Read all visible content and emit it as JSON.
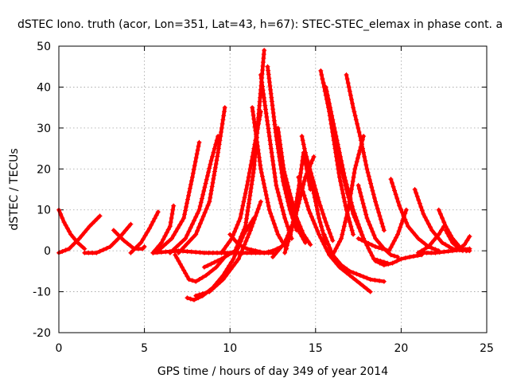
{
  "chart_data": {
    "type": "scatter",
    "title": "dSTEC Iono. truth (acor, Lon=351, Lat=43, h=67): STEC-STEC_elemax in phase cont. a",
    "xlabel": "GPS time / hours of day 349 of year 2014",
    "ylabel": "dSTEC  / TECUs",
    "xlim": [
      0,
      25
    ],
    "ylim": [
      -20,
      50
    ],
    "x_ticks": [
      0,
      5,
      10,
      15,
      20,
      25
    ],
    "y_ticks": [
      -20,
      -10,
      0,
      10,
      20,
      30,
      40,
      50
    ],
    "grid": true,
    "marker": "+",
    "color": "#ff0000",
    "series": [
      {
        "x": [
          0.0,
          0.3,
          0.7,
          1.1,
          1.5
        ],
        "y": [
          10,
          7,
          4,
          2,
          0.5
        ]
      },
      {
        "x": [
          0.0,
          0.6,
          1.2,
          1.8,
          2.4
        ],
        "y": [
          -0.5,
          0.5,
          3,
          6,
          8.5
        ]
      },
      {
        "x": [
          1.5,
          2.2,
          3.0,
          3.6,
          4.2
        ],
        "y": [
          -0.5,
          -0.5,
          1,
          3.5,
          6.5
        ]
      },
      {
        "x": [
          3.2,
          3.8,
          4.4,
          4.9,
          5.0
        ],
        "y": [
          5,
          2.5,
          0.5,
          0.5,
          1
        ]
      },
      {
        "x": [
          4.2,
          4.8,
          5.3,
          5.8
        ],
        "y": [
          -0.5,
          2,
          5.5,
          9.5
        ]
      },
      {
        "x": [
          5.5,
          6.0,
          6.5,
          6.7
        ],
        "y": [
          -0.5,
          2,
          6,
          11
        ]
      },
      {
        "x": [
          5.8,
          6.6,
          7.3,
          7.8,
          8.2
        ],
        "y": [
          0,
          3,
          8,
          18,
          26.5
        ]
      },
      {
        "x": [
          6.5,
          7.4,
          8.2,
          8.9,
          9.3
        ],
        "y": [
          -0.5,
          3,
          10,
          22,
          28
        ]
      },
      {
        "x": [
          7.0,
          8.0,
          8.8,
          9.3,
          9.7
        ],
        "y": [
          -0.5,
          4,
          12,
          24,
          35
        ]
      },
      {
        "x": [
          6.8,
          7.2,
          7.6,
          8.0,
          8.6,
          9.2,
          9.8
        ],
        "y": [
          -1,
          -4,
          -7,
          -7.5,
          -6,
          -4,
          -1
        ]
      },
      {
        "x": [
          7.5,
          7.9,
          8.4,
          9.0,
          9.6,
          10.2,
          10.8,
          11.4
        ],
        "y": [
          -11.5,
          -12,
          -11,
          -9,
          -6,
          -2,
          4,
          8
        ]
      },
      {
        "x": [
          8.0,
          8.8,
          9.6,
          10.5,
          11.2,
          11.8
        ],
        "y": [
          -11,
          -10,
          -7,
          -2,
          5,
          12
        ]
      },
      {
        "x": [
          8.5,
          9.5,
          10.3,
          10.9,
          11.4,
          12.0
        ],
        "y": [
          -4,
          -2,
          0,
          6,
          20,
          49
        ]
      },
      {
        "x": [
          9.5,
          10.1,
          10.6,
          11.0,
          11.4,
          11.8
        ],
        "y": [
          -0.5,
          3,
          8,
          16,
          25,
          34
        ]
      },
      {
        "x": [
          10.0,
          10.5,
          11.0,
          11.5,
          12.0,
          12.5,
          13.0
        ],
        "y": [
          4,
          1.5,
          0.5,
          0,
          -0.5,
          0,
          1
        ]
      },
      {
        "x": [
          11.3,
          11.8,
          12.3,
          12.8,
          13.3
        ],
        "y": [
          35,
          20,
          10,
          4,
          0.5
        ]
      },
      {
        "x": [
          11.8,
          12.3,
          12.7,
          13.2,
          13.6
        ],
        "y": [
          43,
          28,
          16,
          8,
          3
        ]
      },
      {
        "x": [
          12.2,
          12.7,
          13.1,
          13.5,
          13.9
        ],
        "y": [
          45,
          28,
          17,
          10,
          5
        ]
      },
      {
        "x": [
          12.8,
          13.2,
          13.6,
          14.0,
          14.4
        ],
        "y": [
          30,
          18,
          10,
          5,
          2
        ]
      },
      {
        "x": [
          13.0,
          13.5,
          13.9,
          14.3,
          14.7
        ],
        "y": [
          22,
          14,
          8,
          4,
          1.5
        ]
      },
      {
        "x": [
          13.2,
          13.6,
          14.0,
          14.3,
          14.7
        ],
        "y": [
          -0.5,
          5,
          15,
          24,
          15
        ]
      },
      {
        "x": [
          12.5,
          13.2,
          13.8,
          14.4,
          14.9
        ],
        "y": [
          -1.5,
          2,
          8,
          18,
          23
        ]
      },
      {
        "x": [
          14.2,
          14.5,
          14.8,
          15.2,
          15.6
        ],
        "y": [
          28,
          22,
          16,
          8,
          2
        ]
      },
      {
        "x": [
          14.4,
          14.8,
          15.2,
          15.6,
          16.0
        ],
        "y": [
          24,
          18,
          12,
          7,
          2.5
        ]
      },
      {
        "x": [
          14.0,
          14.6,
          15.2,
          15.8,
          16.4,
          17.0,
          17.6,
          18.2
        ],
        "y": [
          18,
          10,
          4,
          -1,
          -4,
          -6,
          -8,
          -10
        ]
      },
      {
        "x": [
          15.3,
          15.5,
          15.8,
          16.1,
          16.4,
          16.8,
          17.2
        ],
        "y": [
          44,
          40,
          34,
          26,
          18,
          10,
          4
        ]
      },
      {
        "x": [
          15.4,
          15.7,
          16.0,
          16.4,
          16.8,
          17.2,
          17.8
        ],
        "y": [
          42,
          37,
          30,
          22,
          15,
          9,
          3
        ]
      },
      {
        "x": [
          15.6,
          15.9,
          16.3,
          16.7,
          17.2,
          17.8,
          18.4,
          19.2
        ],
        "y": [
          40,
          34,
          26,
          18,
          10,
          3,
          -2,
          -3
        ]
      },
      {
        "x": [
          15.5,
          16.0,
          16.5,
          17.0,
          17.6,
          18.2,
          19.0
        ],
        "y": [
          4,
          -1,
          -3.5,
          -5,
          -6,
          -7,
          -7.5
        ]
      },
      {
        "x": [
          16.0,
          16.5,
          16.9,
          17.3,
          17.8
        ],
        "y": [
          -1,
          3,
          10,
          20,
          28
        ]
      },
      {
        "x": [
          16.8,
          17.2,
          17.6,
          18.0,
          18.5,
          19.0
        ],
        "y": [
          43,
          35,
          28,
          20,
          12,
          5
        ]
      },
      {
        "x": [
          17.5,
          18.0,
          18.5,
          19.0,
          19.4,
          19.8
        ],
        "y": [
          16,
          8,
          3,
          0.5,
          -1,
          -1.5
        ]
      },
      {
        "x": [
          18.5,
          19.0,
          19.5,
          20.0,
          20.5,
          21.2
        ],
        "y": [
          -2.5,
          -3.5,
          -3,
          -2,
          -1.5,
          -1
        ]
      },
      {
        "x": [
          17.5,
          18.5,
          19.3,
          19.8,
          20.3
        ],
        "y": [
          3,
          1,
          0,
          4,
          10
        ]
      },
      {
        "x": [
          19.4,
          19.9,
          20.4,
          21.0,
          21.6,
          22.2
        ],
        "y": [
          17.5,
          11,
          6,
          3,
          1,
          0
        ]
      },
      {
        "x": [
          20.8,
          21.3,
          21.8,
          22.4,
          23.0,
          23.6
        ],
        "y": [
          15,
          9,
          5,
          2,
          0.5,
          0
        ]
      },
      {
        "x": [
          21.0,
          21.6,
          22.2,
          22.5
        ],
        "y": [
          -0.5,
          1,
          4,
          6
        ]
      },
      {
        "x": [
          22.2,
          22.6,
          23.0,
          23.4,
          23.8
        ],
        "y": [
          10,
          6,
          3,
          1,
          0
        ]
      },
      {
        "x": [
          22.6,
          23.0,
          23.4,
          23.7,
          24.0
        ],
        "y": [
          5,
          2,
          0.5,
          1.5,
          3.5
        ]
      },
      {
        "x": [
          23.0,
          23.4,
          23.8,
          24.0
        ],
        "y": [
          3,
          1,
          0,
          0
        ]
      },
      {
        "x": [
          21.0,
          22.0,
          23.0,
          24.0
        ],
        "y": [
          -0.5,
          -0.5,
          0,
          0.5
        ]
      },
      {
        "x": [
          5.5,
          7.0,
          8.5,
          10.0,
          11.5,
          12.5
        ],
        "y": [
          -0.5,
          0,
          -0.5,
          -0.5,
          -0.5,
          -0.5
        ]
      }
    ]
  }
}
